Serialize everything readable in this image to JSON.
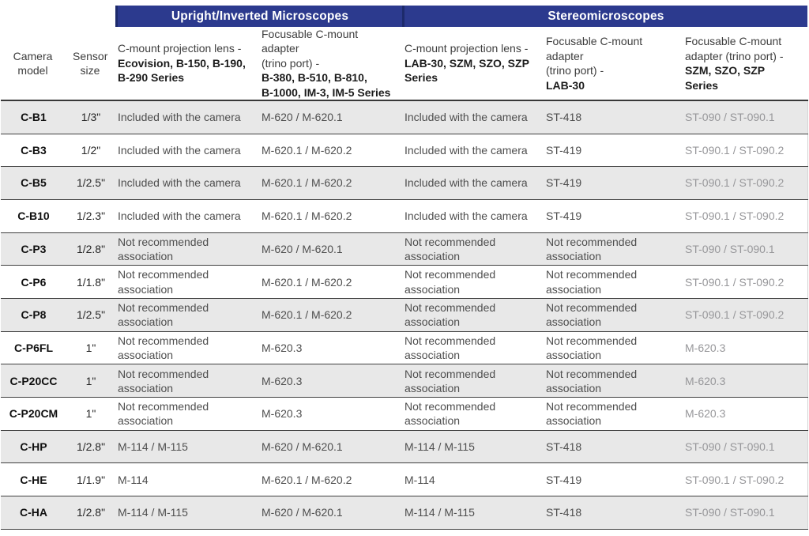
{
  "colors": {
    "banner_blue": "#2c3a8e",
    "banner_divider": "#1d2a6b",
    "banner_text": "#ffffff",
    "row_stripe_gray": "#e8e8e8",
    "separator_line": "#404040",
    "light_column_text": "#97979a"
  },
  "table": {
    "groups": [
      {
        "label": "Upright/Inverted Microscopes",
        "span_columns": 2
      },
      {
        "label": "Stereomicroscopes",
        "span_columns": 3
      }
    ],
    "columns": [
      {
        "id": "camera-model",
        "label": "Camera\nmodel"
      },
      {
        "id": "sensor-size",
        "label": "Sensor\nsize"
      },
      {
        "id": "upright-projection-lens",
        "normal": "C-mount projection lens -",
        "bold": "Ecovision, B-150, B-190,\nB-290 Series"
      },
      {
        "id": "upright-focusable-adapter",
        "normal": "Focusable C-mount adapter\n(trino port) -",
        "bold": "B-380, B-510, B-810,\nB-1000, IM-3, IM-5 Series"
      },
      {
        "id": "stereo-projection-lens",
        "normal": "C-mount projection lens -",
        "bold": "LAB-30, SZM, SZO, SZP\nSeries"
      },
      {
        "id": "stereo-focusable-adapter-lab30",
        "normal": "Focusable C-mount adapter\n(trino port) -",
        "bold": "LAB-30"
      },
      {
        "id": "stereo-focusable-adapter-szm",
        "normal": "Focusable C-mount\nadapter (trino port) -",
        "bold": "SZM, SZO, SZP Series"
      }
    ],
    "rows": [
      [
        "C-B1",
        "1/3\"",
        "Included with the camera",
        "M-620 / M-620.1",
        "Included with the camera",
        "ST-418",
        "ST-090 / ST-090.1"
      ],
      [
        "C-B3",
        "1/2\"",
        "Included with the camera",
        "M-620.1 / M-620.2",
        "Included with the camera",
        "ST-419",
        "ST-090.1 / ST-090.2"
      ],
      [
        "C-B5",
        "1/2.5\"",
        "Included with the camera",
        "M-620.1 / M-620.2",
        "Included with the camera",
        "ST-419",
        "ST-090.1 / ST-090.2"
      ],
      [
        "C-B10",
        "1/2.3\"",
        "Included with the camera",
        "M-620.1 / M-620.2",
        "Included with the camera",
        "ST-419",
        "ST-090.1 / ST-090.2"
      ],
      [
        "C-P3",
        "1/2.8\"",
        "Not recommended\nassociation",
        "M-620 / M-620.1",
        "Not recommended\nassociation",
        "Not recommended\nassociation",
        "ST-090 / ST-090.1"
      ],
      [
        "C-P6",
        "1/1.8\"",
        "Not recommended\nassociation",
        "M-620.1 / M-620.2",
        "Not recommended\nassociation",
        "Not recommended\nassociation",
        "ST-090.1 / ST-090.2"
      ],
      [
        "C-P8",
        "1/2.5\"",
        "Not recommended\nassociation",
        "M-620.1 / M-620.2",
        "Not recommended\nassociation",
        "Not recommended\nassociation",
        "ST-090.1 / ST-090.2"
      ],
      [
        "C-P6FL",
        "1\"",
        "Not recommended\nassociation",
        "M-620.3",
        "Not recommended\nassociation",
        "Not recommended\nassociation",
        "M-620.3"
      ],
      [
        "C-P20CC",
        "1\"",
        "Not recommended\nassociation",
        "M-620.3",
        "Not recommended\nassociation",
        "Not recommended\nassociation",
        "M-620.3"
      ],
      [
        "C-P20CM",
        "1\"",
        "Not recommended\nassociation",
        "M-620.3",
        "Not recommended\nassociation",
        "Not recommended\nassociation",
        "M-620.3"
      ],
      [
        "C-HP",
        "1/2.8\"",
        "M-114 / M-115",
        "M-620 / M-620.1",
        "M-114 / M-115",
        "ST-418",
        "ST-090 / ST-090.1"
      ],
      [
        "C-HE",
        "1/1.9\"",
        "M-114",
        "M-620.1 / M-620.2",
        "M-114",
        "ST-419",
        "ST-090.1 / ST-090.2"
      ],
      [
        "C-HA",
        "1/2.8\"",
        "M-114 / M-115",
        "M-620 / M-620.1",
        "M-114 / M-115",
        "ST-418",
        "ST-090 / ST-090.1"
      ]
    ]
  }
}
